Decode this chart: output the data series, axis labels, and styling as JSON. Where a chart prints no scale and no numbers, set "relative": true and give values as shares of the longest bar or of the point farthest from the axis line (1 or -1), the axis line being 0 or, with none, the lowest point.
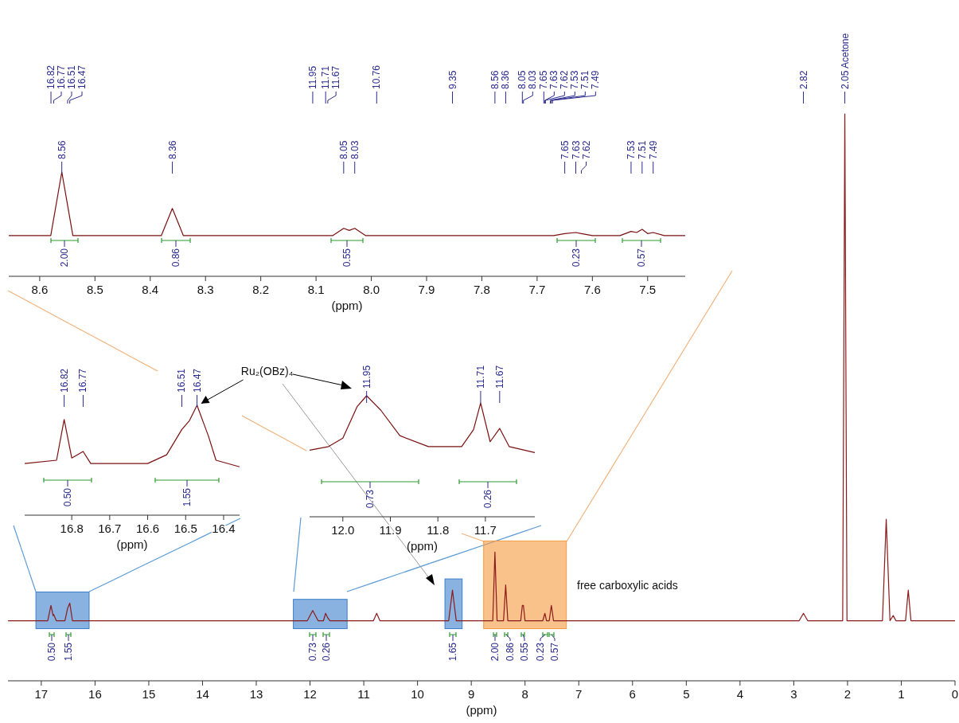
{
  "chart_data": [
    {
      "type": "line",
      "relative": true,
      "xlabel": "(ppm)",
      "xlim": [
        8.656,
        7.432
      ],
      "xticks": [
        8.6,
        8.5,
        8.4,
        8.3,
        8.2,
        8.1,
        {
          "value": 8,
          "label": "8.0"
        },
        7.9,
        7.8,
        7.7,
        7.6,
        7.5
      ],
      "x": [
        8.656,
        8.58,
        8.56,
        8.54,
        8.38,
        8.36,
        8.34,
        8.07,
        8.05,
        8.04,
        8.03,
        8.01,
        7.67,
        7.65,
        7.63,
        7.62,
        7.6,
        7.55,
        7.53,
        7.52,
        7.51,
        7.5,
        7.49,
        7.47,
        7.432
      ],
      "series": [
        {
          "color": "#7a1010",
          "values": [
            0.39,
            0.39,
            1,
            0.39,
            0.39,
            0.65,
            0.39,
            0.39,
            0.46,
            0.44,
            0.46,
            0.39,
            0.39,
            0.41,
            0.42,
            0.41,
            0.39,
            0.39,
            0.43,
            0.42,
            0.45,
            0.41,
            0.42,
            0.39,
            0.39
          ]
        }
      ],
      "annotations": [
        {
          "text": "8.56",
          "x": 8.56
        },
        {
          "text": "8.36",
          "x": 8.36
        },
        {
          "text": "8.05",
          "x": 8.05
        },
        {
          "text": "8.03",
          "x": 8.03
        },
        {
          "text": "7.65",
          "x": 7.65
        },
        {
          "text": "7.63",
          "x": 7.63
        },
        {
          "text": "7.62",
          "x": 7.62
        },
        {
          "text": "7.53",
          "x": 7.53
        },
        {
          "text": "7.51",
          "x": 7.51
        },
        {
          "text": "7.49",
          "x": 7.49
        },
        "2.00",
        "0.86",
        "0.55",
        "0.23",
        "0.57"
      ]
    },
    {
      "type": "line",
      "relative": true,
      "xlabel": "(ppm)",
      "xlim": [
        16.924,
        16.358
      ],
      "xticks": [
        16.8,
        16.7,
        16.6,
        16.5,
        16.4
      ],
      "x": [
        16.924,
        16.84,
        16.82,
        16.8,
        16.77,
        16.75,
        16.6,
        16.55,
        16.51,
        16.49,
        16.47,
        16.44,
        16.42,
        16.358
      ],
      "series": [
        {
          "color": "#7a1010",
          "values": [
            0.47,
            0.5,
            0.87,
            0.52,
            0.58,
            0.47,
            0.47,
            0.55,
            0.78,
            0.86,
            1,
            0.72,
            0.5,
            0.44
          ]
        }
      ],
      "annotations": [
        {
          "text": "16.82",
          "x": 16.82
        },
        {
          "text": "16.77",
          "x": 16.77
        },
        {
          "text": "16.51",
          "x": 16.51
        },
        {
          "text": "16.47",
          "x": 16.47
        },
        {
          "text": "Ru₂(OBz)₄",
          "x": 16.47,
          "y": 1
        },
        "0.50",
        "1.55"
      ]
    },
    {
      "type": "line",
      "relative": true,
      "xlabel": "(ppm)",
      "xlim": [
        12.07,
        11.596
      ],
      "xticks": [
        {
          "value": 12,
          "label": "12.0"
        },
        11.9,
        11.8,
        11.7
      ],
      "x": [
        12.07,
        12.03,
        12,
        11.97,
        11.95,
        11.92,
        11.88,
        11.82,
        11.75,
        11.725,
        11.71,
        11.69,
        11.67,
        11.65,
        11.596
      ],
      "series": [
        {
          "color": "#7a1010",
          "values": [
            0.55,
            0.58,
            0.65,
            0.91,
            1,
            0.88,
            0.67,
            0.58,
            0.58,
            0.72,
            0.94,
            0.62,
            0.73,
            0.58,
            0.53
          ]
        }
      ],
      "annotations": [
        {
          "text": "11.95",
          "x": 11.95
        },
        {
          "text": "11.71",
          "x": 11.71
        },
        {
          "text": "11.67",
          "x": 11.67
        },
        "0.73",
        "0.26"
      ]
    },
    {
      "type": "line",
      "relative": true,
      "xlabel": "(ppm)",
      "xlim": [
        17.62,
        0
      ],
      "xticks": [
        17,
        16,
        15,
        14,
        13,
        12,
        11,
        10,
        9,
        8,
        7,
        6,
        5,
        4,
        3,
        2,
        1,
        0
      ],
      "x": [
        17.62,
        16.88,
        16.82,
        16.78,
        16.77,
        16.72,
        16.56,
        16.51,
        16.47,
        16.42,
        12.05,
        11.95,
        11.85,
        11.75,
        11.71,
        11.67,
        11.63,
        10.82,
        10.76,
        10.7,
        9.42,
        9.35,
        9.28,
        8.6,
        8.56,
        8.52,
        8.4,
        8.36,
        8.32,
        8.08,
        8.05,
        8.03,
        8,
        7.67,
        7.63,
        7.6,
        7.55,
        7.51,
        7.47,
        2.9,
        2.82,
        2.74,
        2.09,
        2.05,
        2.01,
        1.35,
        1.28,
        1.21,
        1.15,
        1.1,
        0.92,
        0.87,
        0.82,
        0
      ],
      "series": [
        {
          "color": "#8b1a1a",
          "values": [
            0.106,
            0.106,
            0.133,
            0.115,
            0.117,
            0.106,
            0.106,
            0.128,
            0.137,
            0.106,
            0.106,
            0.124,
            0.106,
            0.106,
            0.119,
            0.111,
            0.106,
            0.106,
            0.119,
            0.106,
            0.106,
            0.16,
            0.106,
            0.106,
            0.227,
            0.106,
            0.106,
            0.169,
            0.106,
            0.106,
            0.133,
            0.133,
            0.106,
            0.106,
            0.119,
            0.106,
            0.106,
            0.133,
            0.106,
            0.106,
            0.119,
            0.106,
            0.106,
            1,
            0.106,
            0.106,
            0.285,
            0.106,
            0.115,
            0.106,
            0.106,
            0.16,
            0.106,
            0.106
          ]
        }
      ],
      "annotations": [
        {
          "text": "16.82",
          "x": 16.82
        },
        {
          "text": "16.77",
          "x": 16.77
        },
        {
          "text": "16.51",
          "x": 16.51
        },
        {
          "text": "16.47",
          "x": 16.47
        },
        {
          "text": "11.95",
          "x": 11.95
        },
        {
          "text": "11.71",
          "x": 11.71
        },
        {
          "text": "11.67",
          "x": 11.67
        },
        {
          "text": "10.76",
          "x": 10.76
        },
        {
          "text": "9.35",
          "x": 9.35
        },
        {
          "text": "8.56",
          "x": 8.56
        },
        {
          "text": "8.36",
          "x": 8.36
        },
        {
          "text": "8.05",
          "x": 8.05
        },
        {
          "text": "8.03",
          "x": 8.03
        },
        {
          "text": "7.65",
          "x": 7.65
        },
        {
          "text": "7.63",
          "x": 7.63
        },
        {
          "text": "7.62",
          "x": 7.62
        },
        {
          "text": "7.53",
          "x": 7.53
        },
        {
          "text": "7.51",
          "x": 7.51
        },
        {
          "text": "7.49",
          "x": 7.49
        },
        {
          "text": "2.82",
          "x": 2.82
        },
        {
          "text": "2.05 Acetone",
          "x": 2.05
        },
        "0.50",
        "1.55",
        "0.73",
        "0.26",
        "1.65",
        "2.00",
        "0.86",
        "0.55",
        "0.23",
        "0.57",
        "free carboxylic acids"
      ],
      "bands": [
        {
          "axis": "x",
          "from": 17.1,
          "to": 16.11,
          "color": "#3b7ecb"
        },
        {
          "axis": "x",
          "from": 12.31,
          "to": 11.31,
          "color": "#3b7ecb"
        },
        {
          "axis": "x",
          "from": 9.49,
          "to": 9.17,
          "color": "#3b7ecb"
        },
        {
          "axis": "x",
          "from": 8.77,
          "to": 7.23,
          "color": "#f59a3e"
        }
      ]
    }
  ]
}
